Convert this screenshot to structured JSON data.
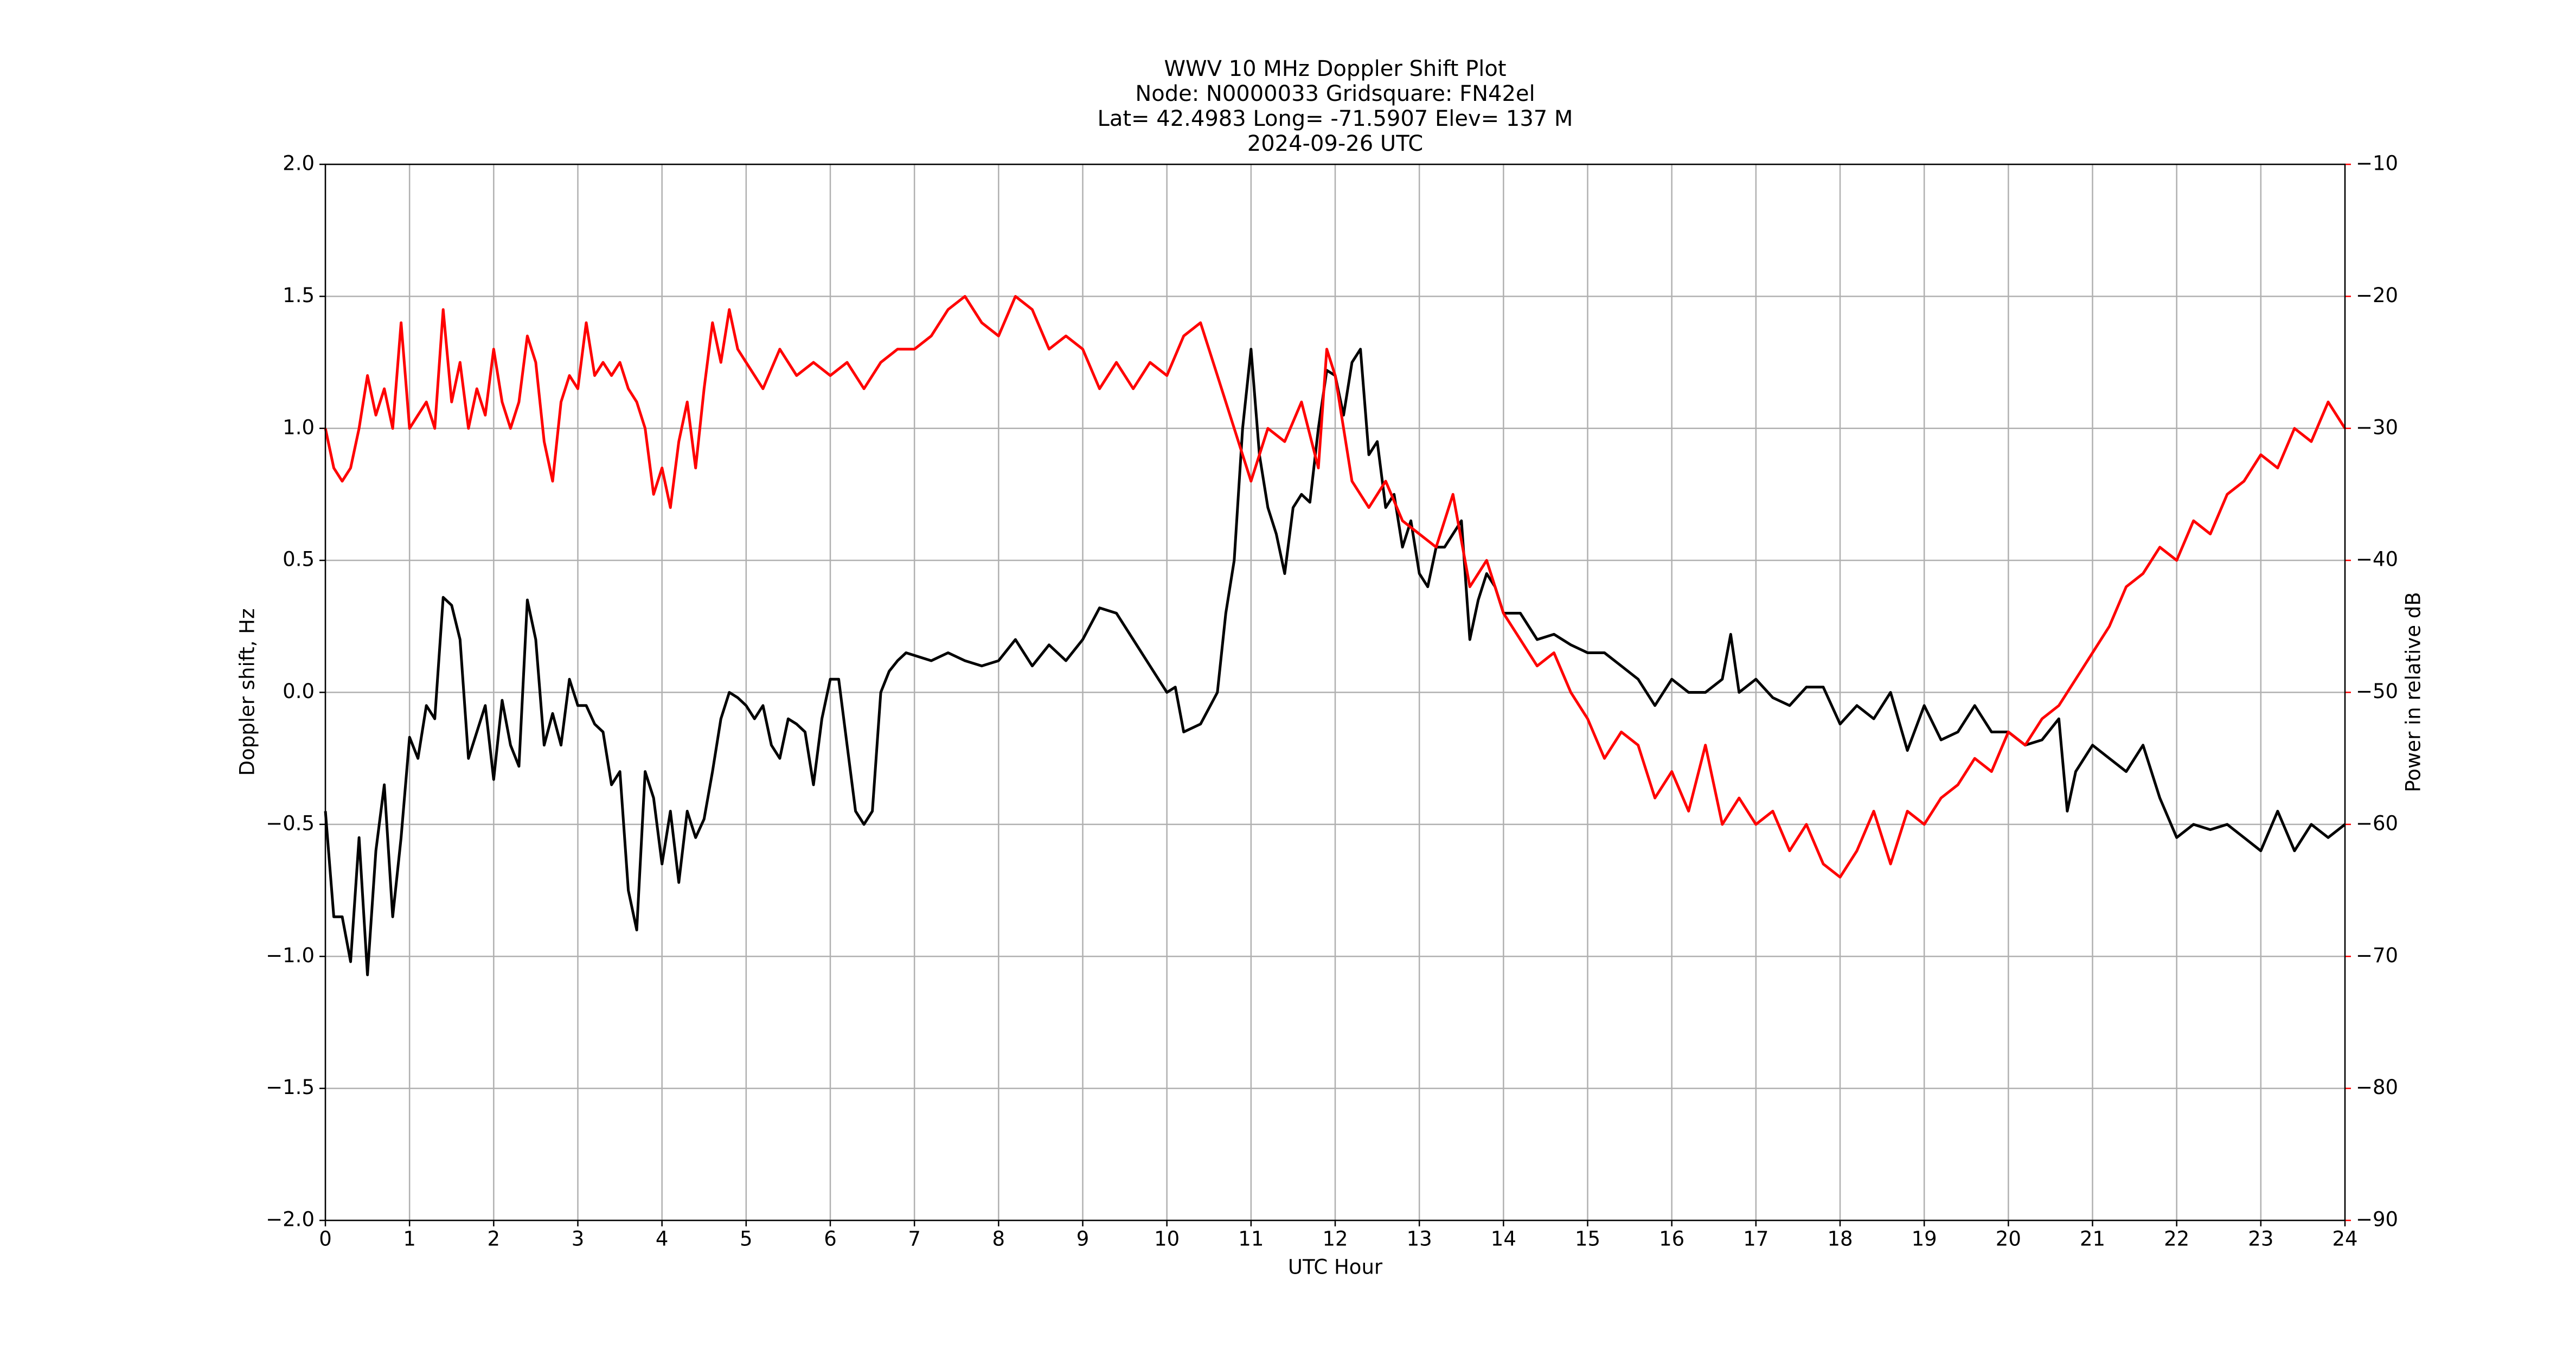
{
  "chart_data": {
    "type": "line",
    "title": [
      "WWV 10 MHz Doppler Shift Plot",
      "Node:  N0000033     Gridsquare:  FN42el",
      "Lat= 42.4983    Long= -71.5907    Elev= 137 M",
      "2024-09-26  UTC"
    ],
    "x_label": "UTC Hour",
    "y_label": "Doppler shift, Hz",
    "y2_label": "Power in relative dB",
    "xlim": [
      0,
      24
    ],
    "xticks": [
      0,
      1,
      2,
      3,
      4,
      5,
      6,
      7,
      8,
      9,
      10,
      11,
      12,
      13,
      14,
      15,
      16,
      17,
      18,
      19,
      20,
      21,
      22,
      23,
      24
    ],
    "ylim": [
      -2.0,
      2.0
    ],
    "yticks": [
      {
        "value": -2.0,
        "label": "−2.0"
      },
      {
        "value": -1.5,
        "label": "−1.5"
      },
      {
        "value": -1.0,
        "label": "−1.0"
      },
      {
        "value": -0.5,
        "label": "−0.5"
      },
      {
        "value": 0.0,
        "label": "0.0"
      },
      {
        "value": 0.5,
        "label": "0.5"
      },
      {
        "value": 1.0,
        "label": "1.0"
      },
      {
        "value": 1.5,
        "label": "1.5"
      },
      {
        "value": 2.0,
        "label": "2.0"
      }
    ],
    "y2lim": [
      -90,
      -10
    ],
    "y2ticks": [
      {
        "value": -90,
        "label": "−90"
      },
      {
        "value": -80,
        "label": "−80"
      },
      {
        "value": -70,
        "label": "−70"
      },
      {
        "value": -60,
        "label": "−60"
      },
      {
        "value": -50,
        "label": "−50"
      },
      {
        "value": -40,
        "label": "−40"
      },
      {
        "value": -30,
        "label": "−30"
      },
      {
        "value": -20,
        "label": "−20"
      },
      {
        "value": -10,
        "label": "−10"
      }
    ],
    "y2_color": "#ff0000",
    "grid": true,
    "series": [
      {
        "color": "#000000",
        "x": [
          0,
          0.1,
          0.2,
          0.3,
          0.4,
          0.5,
          0.6,
          0.7,
          0.8,
          0.9,
          1.0,
          1.1,
          1.2,
          1.3,
          1.4,
          1.5,
          1.6,
          1.7,
          1.8,
          1.9,
          2.0,
          2.1,
          2.2,
          2.3,
          2.4,
          2.5,
          2.6,
          2.7,
          2.8,
          2.9,
          3.0,
          3.1,
          3.2,
          3.3,
          3.4,
          3.5,
          3.6,
          3.7,
          3.8,
          3.9,
          4.0,
          4.1,
          4.2,
          4.3,
          4.4,
          4.5,
          4.6,
          4.7,
          4.8,
          4.9,
          5.0,
          5.1,
          5.2,
          5.3,
          5.4,
          5.5,
          5.6,
          5.7,
          5.8,
          5.9,
          6.0,
          6.1,
          6.2,
          6.3,
          6.4,
          6.5,
          6.6,
          6.7,
          6.8,
          6.9,
          7.0,
          7.2,
          7.4,
          7.6,
          7.8,
          8.0,
          8.2,
          8.4,
          8.6,
          8.8,
          9.0,
          9.2,
          9.4,
          9.6,
          9.8,
          10.0,
          10.1,
          10.2,
          10.4,
          10.6,
          10.7,
          10.8,
          10.9,
          11.0,
          11.1,
          11.2,
          11.3,
          11.4,
          11.5,
          11.6,
          11.7,
          11.8,
          11.9,
          12.0,
          12.1,
          12.2,
          12.3,
          12.4,
          12.5,
          12.6,
          12.7,
          12.8,
          12.9,
          13.0,
          13.1,
          13.2,
          13.3,
          13.4,
          13.5,
          13.6,
          13.7,
          13.8,
          13.9,
          14.0,
          14.2,
          14.4,
          14.6,
          14.8,
          15.0,
          15.2,
          15.4,
          15.6,
          15.8,
          16.0,
          16.2,
          16.4,
          16.6,
          16.7,
          16.8,
          17.0,
          17.2,
          17.4,
          17.6,
          17.8,
          18.0,
          18.2,
          18.4,
          18.6,
          18.8,
          19.0,
          19.2,
          19.4,
          19.6,
          19.8,
          20.0,
          20.2,
          20.4,
          20.6,
          20.7,
          20.8,
          21.0,
          21.2,
          21.4,
          21.6,
          21.8,
          22.0,
          22.2,
          22.4,
          22.6,
          22.8,
          23.0,
          23.2,
          23.4,
          23.6,
          23.8,
          24.0
        ],
        "values": [
          -0.45,
          -0.85,
          -0.85,
          -1.02,
          -0.55,
          -1.07,
          -0.6,
          -0.35,
          -0.85,
          -0.55,
          -0.17,
          -0.25,
          -0.05,
          -0.1,
          0.36,
          0.33,
          0.2,
          -0.25,
          -0.15,
          -0.05,
          -0.33,
          -0.03,
          -0.2,
          -0.28,
          0.35,
          0.2,
          -0.2,
          -0.08,
          -0.2,
          0.05,
          -0.05,
          -0.05,
          -0.12,
          -0.15,
          -0.35,
          -0.3,
          -0.75,
          -0.9,
          -0.3,
          -0.4,
          -0.65,
          -0.45,
          -0.72,
          -0.45,
          -0.55,
          -0.48,
          -0.3,
          -0.1,
          0.0,
          -0.02,
          -0.05,
          -0.1,
          -0.05,
          -0.2,
          -0.25,
          -0.1,
          -0.12,
          -0.15,
          -0.35,
          -0.1,
          0.05,
          0.05,
          -0.2,
          -0.45,
          -0.5,
          -0.45,
          0.0,
          0.08,
          0.12,
          0.15,
          0.14,
          0.12,
          0.15,
          0.12,
          0.1,
          0.12,
          0.2,
          0.1,
          0.18,
          0.12,
          0.2,
          0.32,
          0.3,
          0.2,
          0.1,
          0.0,
          0.02,
          -0.15,
          -0.12,
          0.0,
          0.3,
          0.5,
          1.0,
          1.3,
          0.9,
          0.7,
          0.6,
          0.45,
          0.7,
          0.75,
          0.72,
          1.0,
          1.22,
          1.2,
          1.05,
          1.25,
          1.3,
          0.9,
          0.95,
          0.7,
          0.75,
          0.55,
          0.65,
          0.45,
          0.4,
          0.55,
          0.55,
          0.6,
          0.65,
          0.2,
          0.35,
          0.45,
          0.4,
          0.3,
          0.3,
          0.2,
          0.22,
          0.18,
          0.15,
          0.15,
          0.1,
          0.05,
          -0.05,
          0.05,
          0.0,
          0.0,
          0.05,
          0.22,
          0.0,
          0.05,
          -0.02,
          -0.05,
          0.02,
          0.02,
          -0.12,
          -0.05,
          -0.1,
          0.0,
          -0.22,
          -0.05,
          -0.18,
          -0.15,
          -0.05,
          -0.15,
          -0.15,
          -0.2,
          -0.18,
          -0.1,
          -0.45,
          -0.3,
          -0.2,
          -0.25,
          -0.3,
          -0.2,
          -0.4,
          -0.55,
          -0.5,
          -0.52,
          -0.5,
          -0.55,
          -0.6,
          -0.45,
          -0.6,
          -0.5,
          -0.55,
          -0.5
        ]
      },
      {
        "color": "#ff0000",
        "axis": "y2",
        "x": [
          0,
          0.1,
          0.2,
          0.3,
          0.4,
          0.5,
          0.6,
          0.7,
          0.8,
          0.9,
          1.0,
          1.1,
          1.2,
          1.3,
          1.4,
          1.5,
          1.6,
          1.7,
          1.8,
          1.9,
          2.0,
          2.1,
          2.2,
          2.3,
          2.4,
          2.5,
          2.6,
          2.7,
          2.8,
          2.9,
          3.0,
          3.1,
          3.2,
          3.3,
          3.4,
          3.5,
          3.6,
          3.7,
          3.8,
          3.9,
          4.0,
          4.1,
          4.2,
          4.3,
          4.4,
          4.5,
          4.6,
          4.7,
          4.8,
          4.9,
          5.0,
          5.2,
          5.4,
          5.6,
          5.8,
          6.0,
          6.2,
          6.4,
          6.6,
          6.8,
          7.0,
          7.2,
          7.4,
          7.6,
          7.8,
          8.0,
          8.2,
          8.4,
          8.6,
          8.8,
          9.0,
          9.2,
          9.4,
          9.6,
          9.8,
          10.0,
          10.2,
          10.4,
          10.6,
          10.8,
          11.0,
          11.2,
          11.4,
          11.6,
          11.8,
          11.9,
          12.0,
          12.2,
          12.4,
          12.6,
          12.8,
          13.0,
          13.2,
          13.4,
          13.6,
          13.8,
          14.0,
          14.2,
          14.4,
          14.6,
          14.8,
          15.0,
          15.2,
          15.4,
          15.6,
          15.8,
          16.0,
          16.2,
          16.4,
          16.6,
          16.8,
          17.0,
          17.2,
          17.4,
          17.6,
          17.8,
          18.0,
          18.2,
          18.4,
          18.6,
          18.8,
          19.0,
          19.2,
          19.4,
          19.6,
          19.8,
          20.0,
          20.2,
          20.4,
          20.6,
          20.8,
          21.0,
          21.2,
          21.4,
          21.6,
          21.8,
          22.0,
          22.2,
          22.4,
          22.6,
          22.8,
          23.0,
          23.2,
          23.4,
          23.6,
          23.8,
          24.0
        ],
        "values": [
          -30,
          -33,
          -34,
          -33,
          -30,
          -26,
          -29,
          -27,
          -30,
          -22,
          -30,
          -29,
          -28,
          -30,
          -21,
          -28,
          -25,
          -30,
          -27,
          -29,
          -24,
          -28,
          -30,
          -28,
          -23,
          -25,
          -31,
          -34,
          -28,
          -26,
          -27,
          -22,
          -26,
          -25,
          -26,
          -25,
          -27,
          -28,
          -30,
          -35,
          -33,
          -36,
          -31,
          -28,
          -33,
          -27,
          -22,
          -25,
          -21,
          -24,
          -25,
          -27,
          -24,
          -26,
          -25,
          -26,
          -25,
          -27,
          -25,
          -24,
          -24,
          -23,
          -21,
          -20,
          -22,
          -23,
          -20,
          -21,
          -24,
          -23,
          -24,
          -27,
          -25,
          -27,
          -25,
          -26,
          -23,
          -22,
          -26,
          -30,
          -34,
          -30,
          -31,
          -28,
          -33,
          -24,
          -26,
          -34,
          -36,
          -34,
          -37,
          -38,
          -39,
          -35,
          -42,
          -40,
          -44,
          -46,
          -48,
          -47,
          -50,
          -52,
          -55,
          -53,
          -54,
          -58,
          -56,
          -59,
          -54,
          -60,
          -58,
          -60,
          -59,
          -62,
          -60,
          -63,
          -64,
          -62,
          -59,
          -63,
          -59,
          -60,
          -58,
          -57,
          -55,
          -56,
          -53,
          -54,
          -52,
          -51,
          -49,
          -47,
          -45,
          -42,
          -41,
          -39,
          -40,
          -37,
          -38,
          -35,
          -34,
          -32,
          -33,
          -30,
          -31,
          -28,
          -30
        ]
      }
    ]
  }
}
